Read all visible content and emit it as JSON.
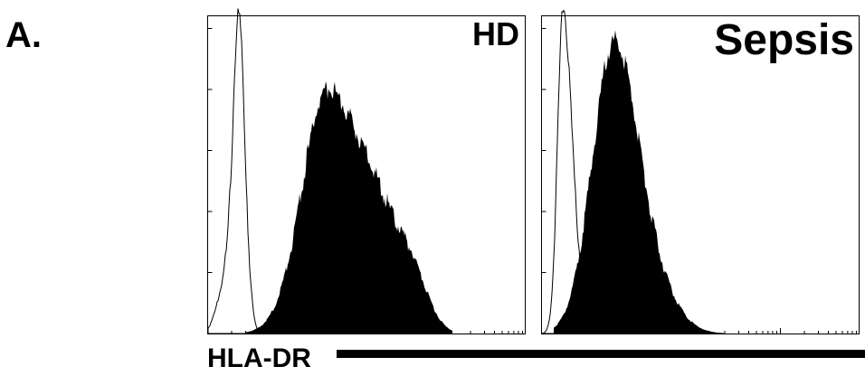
{
  "panel_label": "A.",
  "panels": [
    {
      "title": "HD"
    },
    {
      "title": "Sepsis"
    }
  ],
  "x_axis_label": "HLA-DR"
}
